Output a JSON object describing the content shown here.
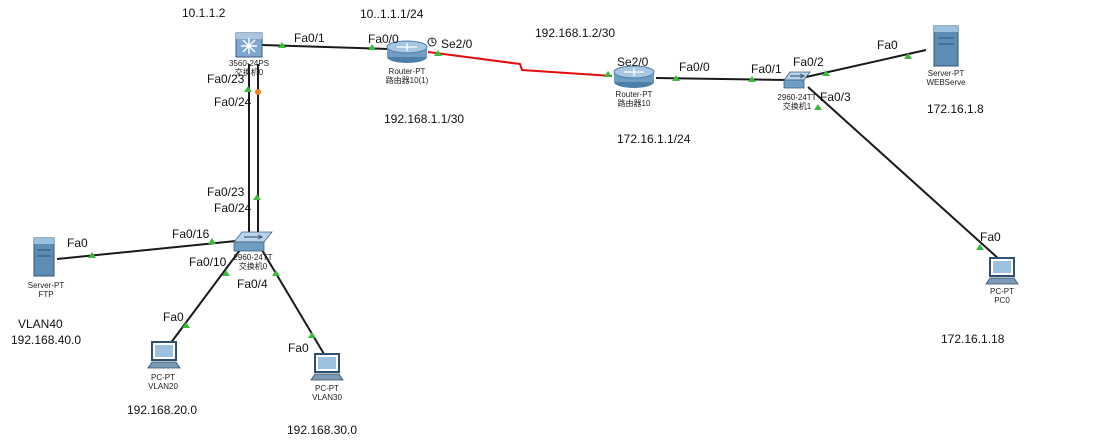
{
  "devices": {
    "mls": {
      "model": "3560-24PS",
      "name": "交换机0"
    },
    "r1": {
      "model": "Router-PT",
      "name": "路由器10(1)"
    },
    "r2": {
      "model": "Router-PT",
      "name": "路由器10"
    },
    "sw1": {
      "model": "2960-24TT",
      "name": "交换机1"
    },
    "sw0": {
      "model": "2960-24TT",
      "name": "交换机0"
    },
    "web": {
      "model": "Server-PT",
      "name": "WEBServe"
    },
    "ftp": {
      "model": "Server-PT",
      "name": "FTP"
    },
    "pc0": {
      "model": "PC-PT",
      "name": "PC0"
    },
    "vlan20": {
      "model": "PC-PT",
      "name": "VLAN20"
    },
    "vlan30": {
      "model": "PC-PT",
      "name": "VLAN30"
    }
  },
  "ports": {
    "mls_fa01": "Fa0/1",
    "mls_fa023": "Fa0/23",
    "mls_fa024": "Fa0/24",
    "r1_fa00": "Fa0/0",
    "r1_se20": "Se2/0",
    "r2_se20": "Se2/0",
    "r2_fa00": "Fa0/0",
    "sw1_fa01": "Fa0/1",
    "sw1_fa02": "Fa0/2",
    "sw1_fa03": "Fa0/3",
    "web_fa0": "Fa0",
    "pc0_fa0": "Fa0",
    "sw0_fa023": "Fa0/23",
    "sw0_fa024": "Fa0/24",
    "sw0_fa016": "Fa0/16",
    "sw0_fa010": "Fa0/10",
    "sw0_fa04": "Fa0/4",
    "ftp_fa0": "Fa0",
    "vlan20_fa0": "Fa0",
    "vlan30_fa0": "Fa0"
  },
  "addresses": {
    "mls_ip": "10.1.1.2",
    "r1_fa_ip": "10..1.1.1/24",
    "serial_net": "192.168.1.2/30",
    "r1_serial_ip": "192.168.1.1/30",
    "r2_lan_ip": "172.16.1.1/24",
    "web_ip": "172.16.1.8",
    "pc0_ip": "172.16.1.18",
    "ftp_vlan": "VLAN40",
    "ftp_net": "192.168.40.0",
    "vlan20_net": "192.168.20.0",
    "vlan30_net": "192.168.30.0"
  },
  "colors": {
    "link": "#1a1a1a",
    "serial": "#e01010",
    "port_up": "#3cb83c",
    "port_amber": "#f08020"
  }
}
